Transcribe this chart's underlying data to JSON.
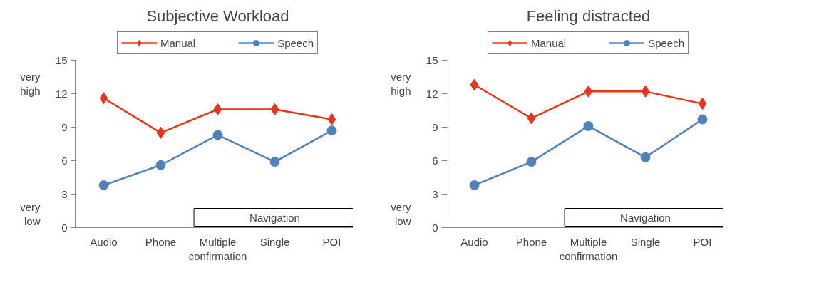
{
  "chart_data": [
    {
      "type": "line",
      "title": "Subjective Workload",
      "categories": [
        "Audio",
        "Phone",
        "Multiple confirmation",
        "Single",
        "POI"
      ],
      "ylim": [
        0,
        15
      ],
      "yticks": [
        0,
        3,
        6,
        9,
        12,
        15
      ],
      "grid": false,
      "legend": "top",
      "annotations": [
        "very high",
        "very low",
        "Navigation"
      ],
      "series": [
        {
          "name": "Manual",
          "color": "#e8351a",
          "marker": "diamond",
          "values": [
            11.6,
            8.5,
            10.6,
            10.6,
            9.7
          ]
        },
        {
          "name": "Speech",
          "color": "#4f81bd",
          "marker": "circle",
          "values": [
            3.8,
            5.6,
            8.3,
            5.9,
            8.7
          ]
        }
      ]
    },
    {
      "type": "line",
      "title": "Feeling distracted",
      "categories": [
        "Audio",
        "Phone",
        "Multiple confirmation",
        "Single",
        "POI"
      ],
      "ylim": [
        0,
        15
      ],
      "yticks": [
        0,
        3,
        6,
        9,
        12,
        15
      ],
      "grid": false,
      "legend": "top",
      "annotations": [
        "very high",
        "very low",
        "Navigation"
      ],
      "series": [
        {
          "name": "Manual",
          "color": "#e8351a",
          "marker": "diamond",
          "values": [
            12.8,
            9.8,
            12.2,
            12.2,
            11.1
          ]
        },
        {
          "name": "Speech",
          "color": "#4f81bd",
          "marker": "circle",
          "values": [
            3.8,
            5.9,
            9.1,
            6.3,
            9.7
          ]
        }
      ]
    }
  ]
}
